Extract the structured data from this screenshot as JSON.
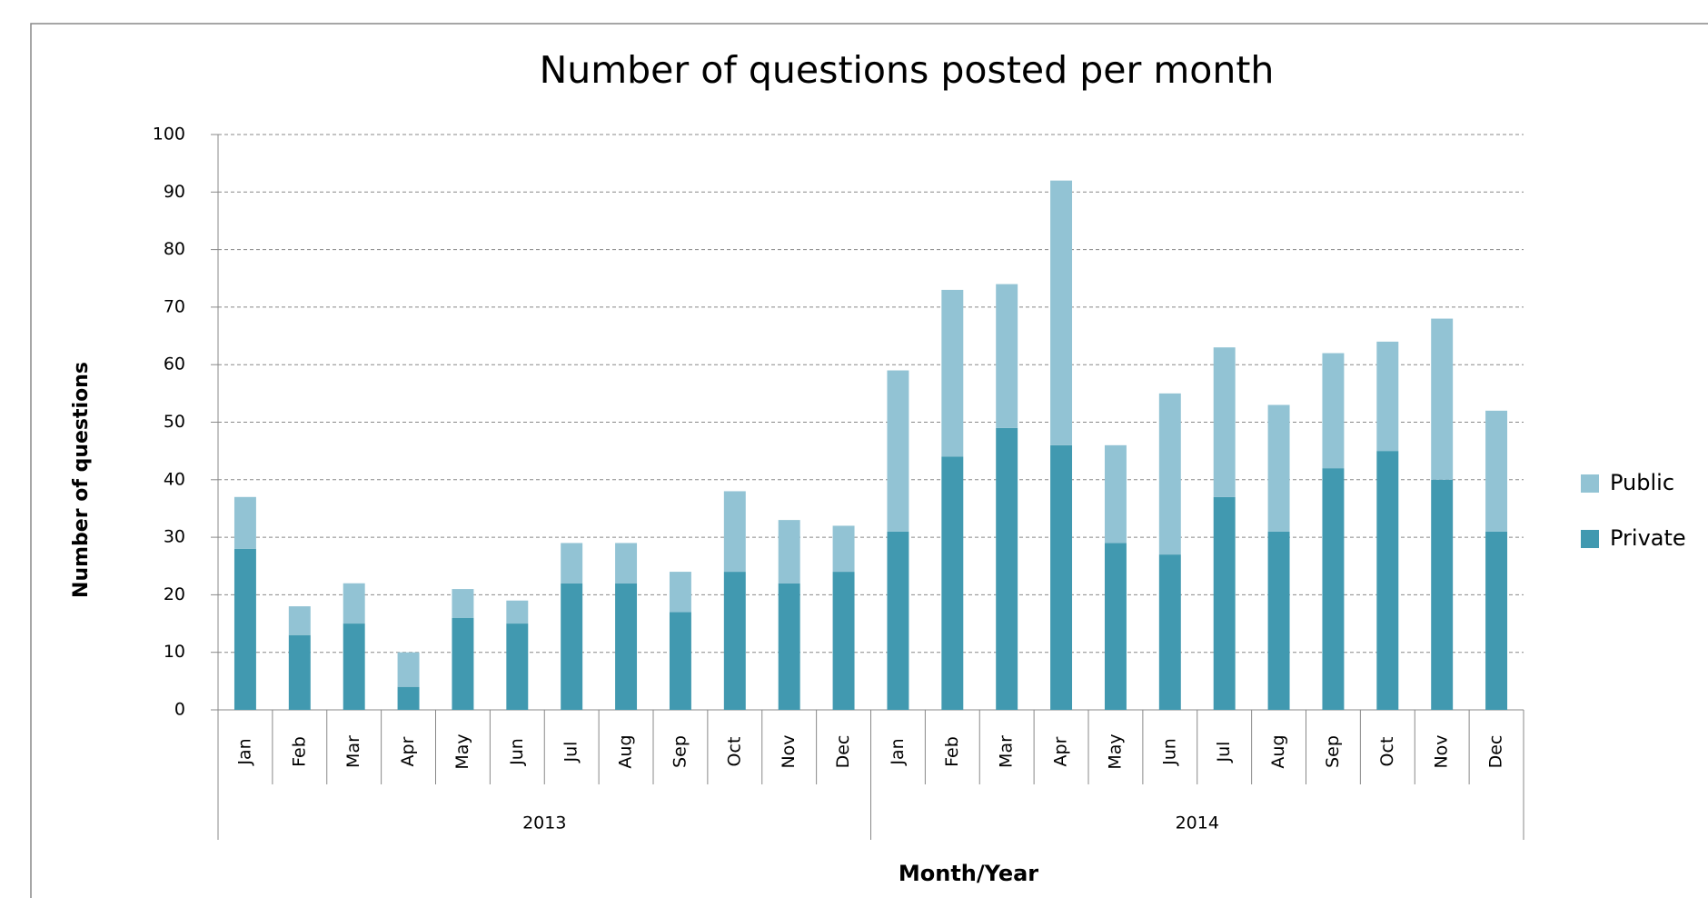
{
  "chart_data": {
    "type": "stacked_bar",
    "title": "Number of questions posted per month",
    "x_label": "Month/Year",
    "y_label": "Number of questions",
    "categories": [
      "Jan",
      "Feb",
      "Mar",
      "Apr",
      "May",
      "Jun",
      "Jul",
      "Aug",
      "Sep",
      "Oct",
      "Nov",
      "Dec",
      "Jan",
      "Feb",
      "Mar",
      "Apr",
      "May",
      "Jun",
      "Jul",
      "Aug",
      "Sep",
      "Oct",
      "Nov",
      "Dec"
    ],
    "x_groups": [
      "2013",
      "2014"
    ],
    "series": [
      {
        "name": "Private",
        "color": "#4199b0",
        "values": [
          28,
          13,
          15,
          4,
          16,
          15,
          22,
          22,
          17,
          24,
          22,
          24,
          31,
          44,
          49,
          46,
          29,
          27,
          37,
          31,
          42,
          45,
          40,
          31
        ]
      },
      {
        "name": "Public",
        "color": "#92c3d4",
        "values": [
          9,
          5,
          7,
          6,
          5,
          4,
          7,
          7,
          7,
          14,
          11,
          8,
          28,
          29,
          25,
          46,
          17,
          28,
          26,
          22,
          20,
          19,
          28,
          21
        ]
      }
    ],
    "ylim": [
      0,
      100
    ],
    "yticks": [
      0,
      10,
      20,
      30,
      40,
      50,
      60,
      70,
      80,
      90,
      100
    ],
    "grid": true,
    "legend": "right"
  }
}
